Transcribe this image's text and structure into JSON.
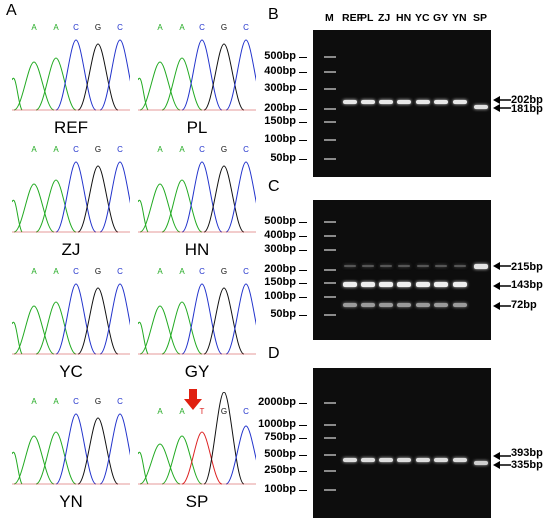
{
  "panel_letters": {
    "a": "A",
    "b": "B",
    "c": "C",
    "d": "D"
  },
  "chromatograms": [
    {
      "name": "REF",
      "bases": [
        "A",
        "A",
        "C",
        "G",
        "C"
      ],
      "base_colors": [
        "#22aa22",
        "#22aa22",
        "#2233cc",
        "#111111",
        "#2233cc"
      ],
      "highlight": false
    },
    {
      "name": "PL",
      "bases": [
        "A",
        "A",
        "C",
        "G",
        "C"
      ],
      "base_colors": [
        "#22aa22",
        "#22aa22",
        "#2233cc",
        "#111111",
        "#2233cc"
      ],
      "highlight": false
    },
    {
      "name": "ZJ",
      "bases": [
        "A",
        "A",
        "C",
        "G",
        "C"
      ],
      "base_colors": [
        "#22aa22",
        "#22aa22",
        "#2233cc",
        "#111111",
        "#2233cc"
      ],
      "highlight": false
    },
    {
      "name": "HN",
      "bases": [
        "A",
        "A",
        "C",
        "G",
        "C"
      ],
      "base_colors": [
        "#22aa22",
        "#22aa22",
        "#2233cc",
        "#111111",
        "#2233cc"
      ],
      "highlight": false
    },
    {
      "name": "YC",
      "bases": [
        "A",
        "A",
        "C",
        "G",
        "C"
      ],
      "base_colors": [
        "#22aa22",
        "#22aa22",
        "#2233cc",
        "#111111",
        "#2233cc"
      ],
      "highlight": false
    },
    {
      "name": "GY",
      "bases": [
        "A",
        "A",
        "C",
        "G",
        "C"
      ],
      "base_colors": [
        "#22aa22",
        "#22aa22",
        "#2233cc",
        "#111111",
        "#2233cc"
      ],
      "highlight": false
    },
    {
      "name": "YN",
      "bases": [
        "A",
        "A",
        "C",
        "G",
        "C"
      ],
      "base_colors": [
        "#22aa22",
        "#22aa22",
        "#2233cc",
        "#111111",
        "#2233cc"
      ],
      "highlight": false
    },
    {
      "name": "SP",
      "bases": [
        "A",
        "A",
        "T",
        "G",
        "C"
      ],
      "base_colors": [
        "#22aa22",
        "#22aa22",
        "#dd2222",
        "#111111",
        "#2233cc"
      ],
      "highlight": true
    }
  ],
  "mutation_arrow_color": "#e02010",
  "gel_b": {
    "lanes": [
      "M",
      "REF",
      "PL",
      "ZJ",
      "HN",
      "YC",
      "GY",
      "YN",
      "SP"
    ],
    "marker_labels": [
      "500bp",
      "400bp",
      "300bp",
      "200bp",
      "150bp",
      "100bp",
      "50bp"
    ],
    "band_labels": [
      "202bp",
      "181bp"
    ]
  },
  "gel_c": {
    "marker_labels": [
      "500bp",
      "400bp",
      "300bp",
      "200bp",
      "150bp",
      "100bp",
      "50bp"
    ],
    "band_labels": [
      "215bp",
      "143bp",
      "72bp"
    ]
  },
  "gel_d": {
    "marker_labels": [
      "2000bp",
      "1000bp",
      "750bp",
      "500bp",
      "250bp",
      "100bp"
    ],
    "band_labels": [
      "393bp",
      "335bp"
    ]
  }
}
